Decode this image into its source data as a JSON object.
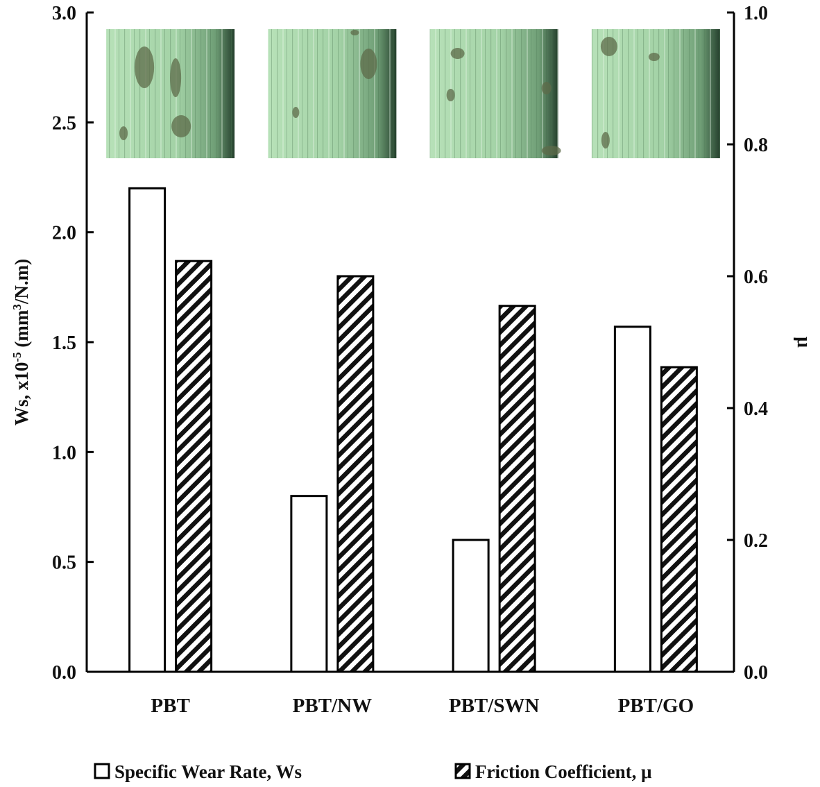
{
  "chart_data": {
    "type": "bar",
    "categories": [
      "PBT",
      "PBT/NW",
      "PBT/SWN",
      "PBT/GO"
    ],
    "series": [
      {
        "name": "Specific Wear Rate, Ws",
        "axis": "left",
        "fill": "plain",
        "values": [
          2.2,
          0.8,
          0.6,
          1.57
        ]
      },
      {
        "name": "Friction Coefficient, μ",
        "axis": "right",
        "fill": "hatched",
        "values": [
          0.623,
          0.6,
          0.555,
          0.462
        ]
      }
    ],
    "y_left": {
      "label_main": "Ws, x10",
      "label_exp": "-5",
      "label_unit": " (mm",
      "label_unit_exp": "3",
      "label_tail": "/N.m)",
      "lim": [
        0,
        3.0
      ],
      "ticks": [
        "0.0",
        "0.5",
        "1.0",
        "1.5",
        "2.0",
        "2.5",
        "3.0"
      ]
    },
    "y_right": {
      "label": "μ",
      "lim": [
        0,
        1.0
      ],
      "ticks": [
        "0.0",
        "0.2",
        "0.4",
        "0.6",
        "0.8",
        "1.0"
      ]
    },
    "grid": false,
    "legend_position": "bottom",
    "inset_images": [
      "wear-track-micrograph-pbt",
      "wear-track-micrograph-pbt-nw",
      "wear-track-micrograph-pbt-swn",
      "wear-track-micrograph-pbt-go"
    ],
    "colors": {
      "bar_fill": "#ffffff",
      "bar_stroke": "#000000",
      "micrograph_base": "#a9d7ab"
    }
  }
}
